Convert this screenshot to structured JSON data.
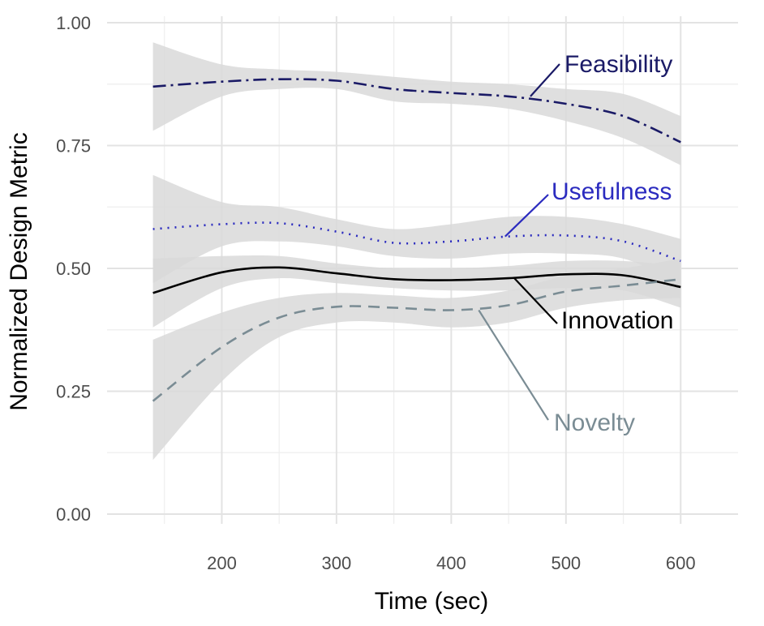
{
  "chart_data": {
    "type": "line",
    "title": "",
    "xlabel": "Time (sec)",
    "ylabel": "Normalized Design Metric",
    "xlim": [
      140,
      600
    ],
    "ylim": [
      0,
      1
    ],
    "x_ticks": [
      200,
      300,
      400,
      500,
      600
    ],
    "x_tick_labels": [
      "200",
      "300",
      "400",
      "500",
      "600"
    ],
    "y_ticks": [
      0,
      0.25,
      0.5,
      0.75,
      1
    ],
    "y_tick_labels": [
      "0.00",
      "0.25",
      "0.50",
      "0.75",
      "1.00"
    ],
    "grid": true,
    "legend": "direct labels",
    "band_color": "#d9d9d9",
    "series": [
      {
        "name": "Feasibility",
        "color": "#1a1a66",
        "dash": "dashdot",
        "x": [
          140,
          200,
          250,
          300,
          350,
          400,
          450,
          500,
          550,
          600
        ],
        "y": [
          0.87,
          0.88,
          0.885,
          0.882,
          0.865,
          0.857,
          0.85,
          0.835,
          0.81,
          0.757
        ],
        "lower": [
          0.78,
          0.85,
          0.865,
          0.865,
          0.84,
          0.835,
          0.825,
          0.8,
          0.765,
          0.71
        ],
        "upper": [
          0.96,
          0.915,
          0.905,
          0.9,
          0.89,
          0.88,
          0.875,
          0.865,
          0.855,
          0.81
        ]
      },
      {
        "name": "Usefulness",
        "color": "#2b2bbf",
        "dash": "dotted",
        "x": [
          140,
          200,
          250,
          300,
          350,
          400,
          450,
          500,
          550,
          600
        ],
        "y": [
          0.58,
          0.59,
          0.592,
          0.575,
          0.552,
          0.555,
          0.565,
          0.567,
          0.555,
          0.515
        ],
        "lower": [
          0.47,
          0.545,
          0.555,
          0.545,
          0.525,
          0.52,
          0.53,
          0.53,
          0.52,
          0.47
        ],
        "upper": [
          0.69,
          0.635,
          0.625,
          0.6,
          0.58,
          0.59,
          0.605,
          0.605,
          0.59,
          0.56
        ]
      },
      {
        "name": "Innovation",
        "color": "#000000",
        "dash": "solid",
        "x": [
          140,
          200,
          250,
          300,
          350,
          400,
          450,
          500,
          550,
          600
        ],
        "y": [
          0.45,
          0.492,
          0.502,
          0.49,
          0.478,
          0.476,
          0.48,
          0.488,
          0.486,
          0.462
        ],
        "lower": [
          0.38,
          0.46,
          0.48,
          0.47,
          0.46,
          0.455,
          0.455,
          0.46,
          0.455,
          0.42
        ],
        "upper": [
          0.52,
          0.525,
          0.525,
          0.51,
          0.5,
          0.5,
          0.505,
          0.515,
          0.515,
          0.505
        ]
      },
      {
        "name": "Novelty",
        "color": "#7a8c94",
        "dash": "dashed",
        "x": [
          140,
          200,
          250,
          300,
          350,
          400,
          450,
          500,
          550,
          600
        ],
        "y": [
          0.23,
          0.34,
          0.4,
          0.422,
          0.42,
          0.415,
          0.425,
          0.453,
          0.465,
          0.478
        ],
        "lower": [
          0.11,
          0.27,
          0.36,
          0.39,
          0.39,
          0.38,
          0.39,
          0.42,
          0.435,
          0.44
        ],
        "upper": [
          0.355,
          0.41,
          0.44,
          0.45,
          0.445,
          0.44,
          0.455,
          0.485,
          0.5,
          0.52
        ]
      }
    ],
    "annotations": [
      {
        "text": "Feasibility",
        "color": "#1a1a66",
        "anchor_x": 469,
        "anchor_y": 0.85
      },
      {
        "text": "Usefulness",
        "color": "#2b2bbf",
        "anchor_x": 447,
        "anchor_y": 0.565
      },
      {
        "text": "Innovation",
        "color": "#000000",
        "anchor_x": 455,
        "anchor_y": 0.48
      },
      {
        "text": "Novelty",
        "color": "#7a8c94",
        "anchor_x": 424,
        "anchor_y": 0.415
      }
    ]
  }
}
